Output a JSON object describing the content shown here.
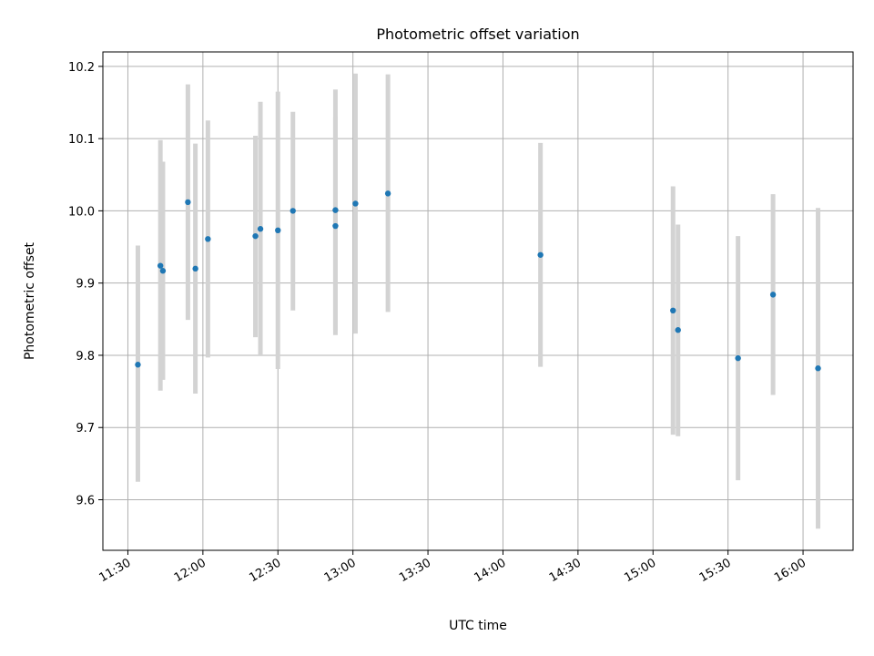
{
  "chart_data": {
    "type": "scatter",
    "title": "Photometric offset variation",
    "xlabel": "UTC time",
    "ylabel": "Photometric offset",
    "grid": true,
    "xlim": [
      "11:20",
      "16:20"
    ],
    "ylim": [
      9.53,
      10.22
    ],
    "xticks": [
      "11:30",
      "12:00",
      "12:30",
      "13:00",
      "13:30",
      "14:00",
      "14:30",
      "15:00",
      "15:30",
      "16:00"
    ],
    "yticks": [
      9.6,
      9.7,
      9.8,
      9.9,
      10.0,
      10.1,
      10.2
    ],
    "marker_color": "#1f77b4",
    "errorbar_color": "#d3d3d3",
    "points": [
      {
        "x": "11:34",
        "y": 9.787,
        "ymin": 9.625,
        "ymax": 9.952
      },
      {
        "x": "11:43",
        "y": 9.924,
        "ymin": 9.751,
        "ymax": 10.098
      },
      {
        "x": "11:44",
        "y": 9.917,
        "ymin": 9.766,
        "ymax": 10.068
      },
      {
        "x": "11:54",
        "y": 10.012,
        "ymin": 9.849,
        "ymax": 10.175
      },
      {
        "x": "11:57",
        "y": 9.92,
        "ymin": 9.747,
        "ymax": 10.093
      },
      {
        "x": "12:02",
        "y": 9.961,
        "ymin": 9.797,
        "ymax": 10.125
      },
      {
        "x": "12:21",
        "y": 9.965,
        "ymin": 9.825,
        "ymax": 10.104
      },
      {
        "x": "12:23",
        "y": 9.975,
        "ymin": 9.8,
        "ymax": 10.151
      },
      {
        "x": "12:30",
        "y": 9.973,
        "ymin": 9.781,
        "ymax": 10.165
      },
      {
        "x": "12:36",
        "y": 10.0,
        "ymin": 9.862,
        "ymax": 10.137
      },
      {
        "x": "12:53",
        "y": 9.979,
        "ymin": 9.828,
        "ymax": 10.13
      },
      {
        "x": "12:53",
        "y": 10.001,
        "ymin": 9.835,
        "ymax": 10.168
      },
      {
        "x": "13:01",
        "y": 10.01,
        "ymin": 9.83,
        "ymax": 10.19
      },
      {
        "x": "13:14",
        "y": 10.024,
        "ymin": 9.86,
        "ymax": 10.189
      },
      {
        "x": "14:15",
        "y": 9.939,
        "ymin": 9.784,
        "ymax": 10.094
      },
      {
        "x": "15:08",
        "y": 9.862,
        "ymin": 9.69,
        "ymax": 10.034
      },
      {
        "x": "15:10",
        "y": 9.835,
        "ymin": 9.688,
        "ymax": 9.981
      },
      {
        "x": "15:34",
        "y": 9.796,
        "ymin": 9.627,
        "ymax": 9.965
      },
      {
        "x": "15:48",
        "y": 9.884,
        "ymin": 9.745,
        "ymax": 10.023
      },
      {
        "x": "16:06",
        "y": 9.782,
        "ymin": 9.56,
        "ymax": 10.004
      }
    ]
  }
}
